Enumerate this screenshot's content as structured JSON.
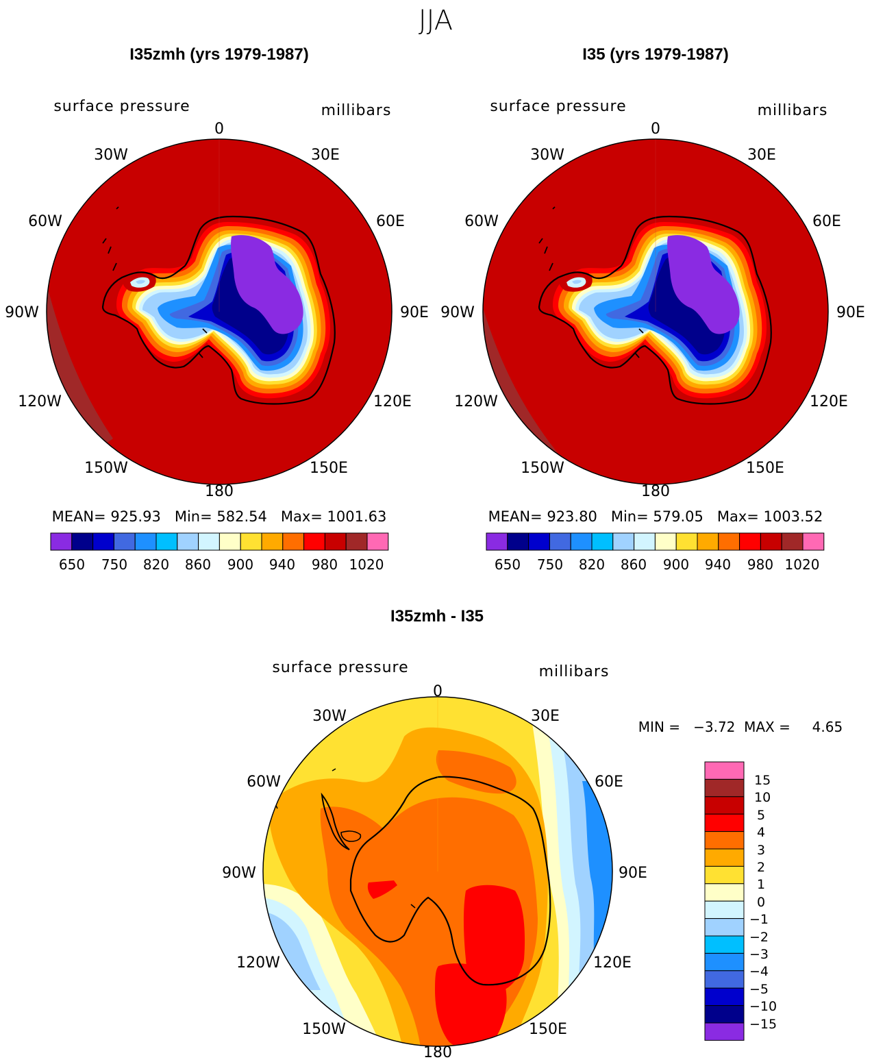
{
  "figure_title": "JJA",
  "chart_data": [
    {
      "type": "heatmap",
      "title": "I35zmh (yrs 1979-1987)",
      "field_label": "surface pressure",
      "units_label": "millibars",
      "projection": "south-polar-stereographic",
      "longitude_labels": [
        "0",
        "30E",
        "60E",
        "90E",
        "120E",
        "150E",
        "180",
        "150W",
        "120W",
        "90W",
        "60W",
        "30W"
      ],
      "stats_text": "MEAN= 925.93   Min= 582.54   Max= 1001.63",
      "colorbar": {
        "orientation": "horizontal",
        "colors": [
          "#8a2be2",
          "#00008b",
          "#0000cd",
          "#4169e1",
          "#1e90ff",
          "#00bfff",
          "#a0d2ff",
          "#d2f5ff",
          "#ffffc8",
          "#ffe132",
          "#ffaa00",
          "#ff6e00",
          "#ff0000",
          "#c80000",
          "#a02828",
          "#ff69b4"
        ],
        "tick_labels": [
          "650",
          "750",
          "820",
          "860",
          "900",
          "940",
          "980",
          "1020"
        ]
      }
    },
    {
      "type": "heatmap",
      "title": "I35 (yrs 1979-1987)",
      "field_label": "surface pressure",
      "units_label": "millibars",
      "projection": "south-polar-stereographic",
      "longitude_labels": [
        "0",
        "30E",
        "60E",
        "90E",
        "120E",
        "150E",
        "180",
        "150W",
        "120W",
        "90W",
        "60W",
        "30W"
      ],
      "stats_text": "MEAN= 923.80   Min= 579.05   Max= 1003.52",
      "colorbar": {
        "orientation": "horizontal",
        "colors": [
          "#8a2be2",
          "#00008b",
          "#0000cd",
          "#4169e1",
          "#1e90ff",
          "#00bfff",
          "#a0d2ff",
          "#d2f5ff",
          "#ffffc8",
          "#ffe132",
          "#ffaa00",
          "#ff6e00",
          "#ff0000",
          "#c80000",
          "#a02828",
          "#ff69b4"
        ],
        "tick_labels": [
          "650",
          "750",
          "820",
          "860",
          "900",
          "940",
          "980",
          "1020"
        ]
      }
    },
    {
      "type": "heatmap",
      "title": "I35zmh - I35",
      "field_label": "surface pressure",
      "units_label": "millibars",
      "projection": "south-polar-stereographic",
      "longitude_labels": [
        "0",
        "30E",
        "60E",
        "90E",
        "120E",
        "150E",
        "180",
        "150W",
        "120W",
        "90W",
        "60W",
        "30W"
      ],
      "stats_text": "MIN =   −3.72  MAX =     4.65",
      "colorbar": {
        "orientation": "vertical",
        "colors_top_to_bottom": [
          "#ff69b4",
          "#a02828",
          "#c80000",
          "#ff0000",
          "#ff6e00",
          "#ffaa00",
          "#ffe132",
          "#ffffc8",
          "#d2f5ff",
          "#a0d2ff",
          "#00bfff",
          "#1e90ff",
          "#4169e1",
          "#0000cd",
          "#00008b",
          "#8a2be2"
        ],
        "tick_labels": [
          "15",
          "10",
          "5",
          "4",
          "3",
          "2",
          "1",
          "0",
          "−1",
          "−2",
          "−3",
          "−4",
          "−5",
          "−10",
          "−15"
        ]
      }
    }
  ]
}
